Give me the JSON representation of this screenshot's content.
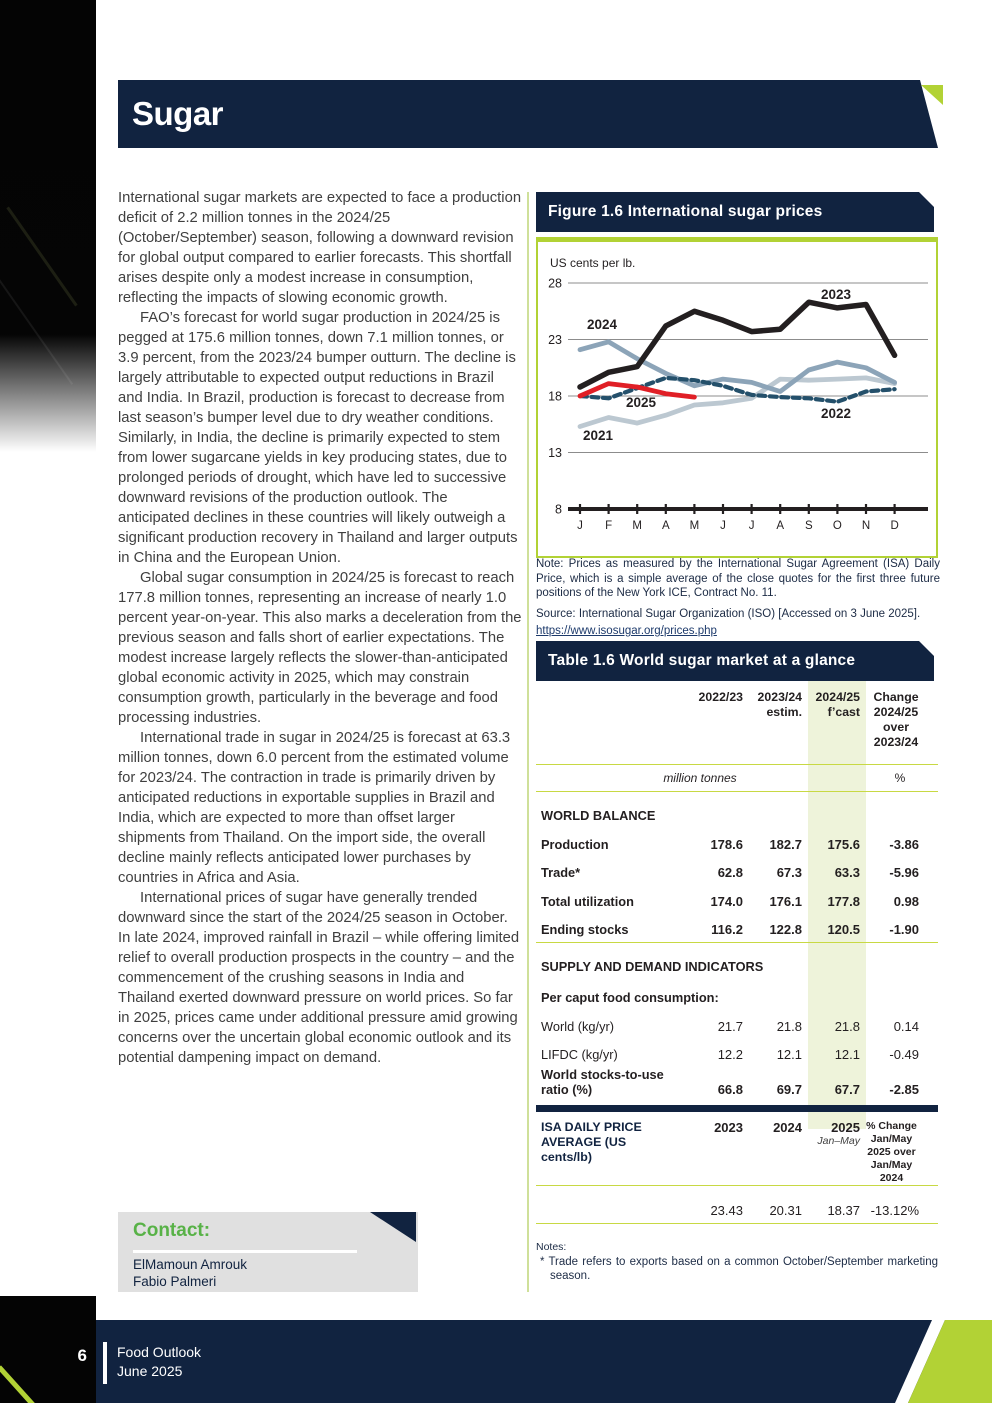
{
  "page": {
    "section_title": "Sugar",
    "page_number": "6",
    "footer": {
      "line1": "Food Outlook",
      "line2": "June 2025"
    }
  },
  "article": {
    "paragraphs": [
      "International sugar markets are expected to face a production deficit of 2.2 million tonnes in the 2024/25 (October/September) season, following a downward revision for global output compared to earlier forecasts. This shortfall arises despite only a modest increase in consumption, reflecting the impacts of slowing economic growth.",
      "FAO’s forecast for world sugar production in 2024/25 is pegged at 175.6 million tonnes, down 7.1 million tonnes, or 3.9 percent, from the 2023/24 bumper outturn. The decline is largely attributable to expected output reductions in Brazil and India. In Brazil, production is forecast to decrease from last season’s bumper level due to dry weather conditions. Similarly, in India, the decline is primarily expected to stem from lower sugarcane yields in key producing states, due to prolonged periods of drought, which have led to successive downward revisions of the production outlook. The anticipated declines in these countries will likely outweigh a significant production recovery in Thailand and larger outputs in China and the European Union.",
      "Global sugar consumption in 2024/25 is forecast to reach 177.8 million tonnes, representing an increase of nearly 1.0 percent year-on-year. This also marks a deceleration from the previous season and falls short of earlier expectations. The modest increase largely reflects the slower-than-anticipated global economic activity in 2025, which may constrain consumption growth, particularly in the beverage and food processing industries.",
      "International trade in sugar in 2024/25 is forecast at 63.3 million tonnes, down 6.0 percent from the estimated volume for 2023/24. The contraction in trade is primarily driven by anticipated reductions in exportable supplies in Brazil and India, which are expected to more than offset larger shipments from Thailand. On the import side, the overall decline mainly reflects anticipated lower purchases by countries in Africa and Asia.",
      "International prices of sugar have generally trended downward since the start of the 2024/25 season in October. In late 2024, improved rainfall in Brazil – while offering limited relief to overall production prospects in the country – and the commencement of the crushing seasons in India and Thailand exerted downward pressure on world prices. So far in 2025, prices came under additional pressure amid growing concerns over the uncertain global economic outlook and its potential dampening impact on demand."
    ]
  },
  "figure": {
    "title": "Figure 1.6 International sugar prices",
    "note": "Note: Prices as measured by the International Sugar Agreement (ISA) Daily Price, which is a simple average of the close quotes for the first three future positions of the New York ICE, Contract No. 11.",
    "source": "Source: International Sugar Organization (ISO) [Accessed on 3 June 2025].",
    "link": "https://www.isosugar.org/prices.php"
  },
  "chart_data": {
    "type": "line",
    "title": "Figure 1.6 International sugar prices",
    "ylabel": "US cents per lb.",
    "ylim": [
      8,
      28
    ],
    "yticks": [
      28,
      23,
      18,
      13,
      8
    ],
    "grid": "horizontal",
    "x": [
      "J",
      "F",
      "M",
      "A",
      "M",
      "J",
      "J",
      "A",
      "S",
      "O",
      "N",
      "D"
    ],
    "series": [
      {
        "name": "2021",
        "color": "#bcc8d1",
        "dashed": false,
        "values": [
          15.3,
          16.1,
          15.6,
          16.3,
          17.2,
          17.4,
          17.8,
          19.5,
          19.4,
          19.5,
          19.6,
          19.1
        ]
      },
      {
        "name": "2024",
        "color": "#8ca4b8",
        "dashed": false,
        "values": [
          22.1,
          22.8,
          21.3,
          20.0,
          18.9,
          19.5,
          19.2,
          18.4,
          20.3,
          21.0,
          20.5,
          19.2
        ]
      },
      {
        "name": "2022",
        "color": "#24506b",
        "dashed": true,
        "values": [
          18.0,
          17.8,
          18.7,
          19.6,
          19.4,
          18.9,
          18.1,
          17.9,
          17.8,
          17.5,
          18.4,
          18.6
        ]
      },
      {
        "name": "2025",
        "color": "#e01f26",
        "dashed": false,
        "values": [
          18.0,
          19.1,
          18.8,
          18.2,
          17.9
        ]
      },
      {
        "name": "2023",
        "color": "#231f20",
        "dashed": false,
        "values": [
          18.8,
          20.1,
          20.6,
          24.2,
          25.5,
          24.7,
          23.7,
          23.9,
          26.3,
          25.8,
          26.1,
          21.6
        ]
      }
    ]
  },
  "table": {
    "title": "Table 1.6 World sugar market at a glance",
    "col_headers": [
      "2022/23",
      "2023/24\nestim.",
      "2024/25\nf’cast",
      "Change\n2024/25\nover\n2023/24"
    ],
    "unit_left": "million tonnes",
    "unit_right": "%",
    "sections": [
      "WORLD BALANCE",
      "SUPPLY AND DEMAND INDICATORS",
      "Per caput food consumption:"
    ],
    "rows": [
      {
        "label": "Production",
        "v1": "178.6",
        "v2": "182.7",
        "v3": "175.6",
        "v4": "-3.86"
      },
      {
        "label": "Trade*",
        "v1": "62.8",
        "v2": "67.3",
        "v3": "63.3",
        "v4": "-5.96"
      },
      {
        "label": "Total utilization",
        "v1": "174.0",
        "v2": "176.1",
        "v3": "177.8",
        "v4": "0.98"
      },
      {
        "label": "Ending stocks",
        "v1": "116.2",
        "v2": "122.8",
        "v3": "120.5",
        "v4": "-1.90"
      },
      {
        "label": "World (kg/yr)",
        "v1": "21.7",
        "v2": "21.8",
        "v3": "21.8",
        "v4": "0.14"
      },
      {
        "label": "LIFDC (kg/yr)",
        "v1": "12.2",
        "v2": "12.1",
        "v3": "12.1",
        "v4": "-0.49"
      },
      {
        "label": "World stocks-to-use ratio (%)",
        "v1": "66.8",
        "v2": "69.7",
        "v3": "67.7",
        "v4": "-2.85"
      }
    ],
    "isa": {
      "label": "ISA DAILY PRICE AVERAGE (US cents/lb)",
      "cols": [
        "2023",
        "2024",
        "2025",
        "% Change\nJan/May\n2025 over\nJan/May\n2024"
      ],
      "sub": "Jan–May",
      "values": [
        "23.43",
        "20.31",
        "18.37",
        "-13.12%"
      ]
    },
    "notes_label": "Notes:",
    "note": "* Trade refers to exports based on a common October/September marketing season."
  },
  "contact": {
    "heading": "Contact:",
    "names": [
      "ElMamoun Amrouk",
      "Fabio Palmeri"
    ]
  },
  "colors": {
    "navy": "#112340",
    "accent_green": "#b2d235",
    "table_rule_green": "#c8d943",
    "forecast_highlight": "#eef3da",
    "contact_green": "#58b247"
  }
}
